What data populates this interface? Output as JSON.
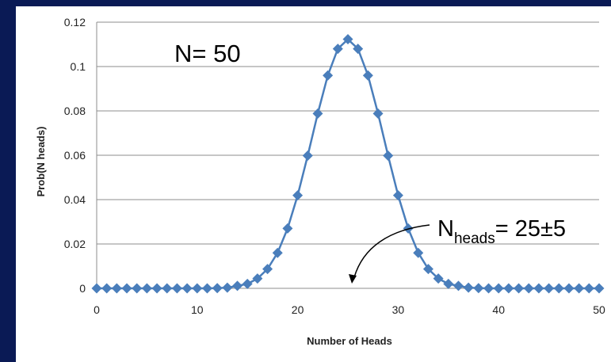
{
  "chart_data": {
    "type": "line",
    "title": "",
    "xlabel": "Number of Heads",
    "ylabel": "Prob(N heads)",
    "xlim": [
      0,
      50
    ],
    "ylim": [
      0,
      0.12
    ],
    "x_ticks": [
      "0",
      "10",
      "20",
      "30",
      "40",
      "50"
    ],
    "y_ticks": [
      "0",
      "0.02",
      "0.04",
      "0.06",
      "0.08",
      "0.1",
      "0.12"
    ],
    "grid": "horizontal",
    "legend": "none",
    "line_color": "#4a7ebb",
    "series": [
      {
        "x": [
          0,
          1,
          2,
          3,
          4,
          5,
          6,
          7,
          8,
          9,
          10,
          11,
          12,
          13,
          14,
          15,
          16,
          17,
          18,
          19,
          20,
          21,
          22,
          23,
          24,
          25,
          26,
          27,
          28,
          29,
          30,
          31,
          32,
          33,
          34,
          35,
          36,
          37,
          38,
          39,
          40,
          41,
          42,
          43,
          44,
          45,
          46,
          47,
          48,
          49,
          50
        ],
        "values": [
          0,
          0,
          0,
          0,
          0,
          0,
          0,
          0,
          0,
          0,
          0,
          0,
          0.0001,
          0.0003,
          0.0011,
          0.002,
          0.0044,
          0.0087,
          0.016,
          0.027,
          0.0419,
          0.0598,
          0.0788,
          0.096,
          0.108,
          0.1123,
          0.108,
          0.096,
          0.0788,
          0.0598,
          0.0419,
          0.027,
          0.016,
          0.0087,
          0.0044,
          0.002,
          0.0011,
          0.0003,
          0.0001,
          0,
          0,
          0,
          0,
          0,
          0,
          0,
          0,
          0,
          0,
          0,
          0
        ]
      }
    ],
    "annotations": {
      "n_label": "N= 50",
      "nheads_main": "N",
      "nheads_sub": "heads",
      "nheads_value": "= 25±5"
    }
  }
}
